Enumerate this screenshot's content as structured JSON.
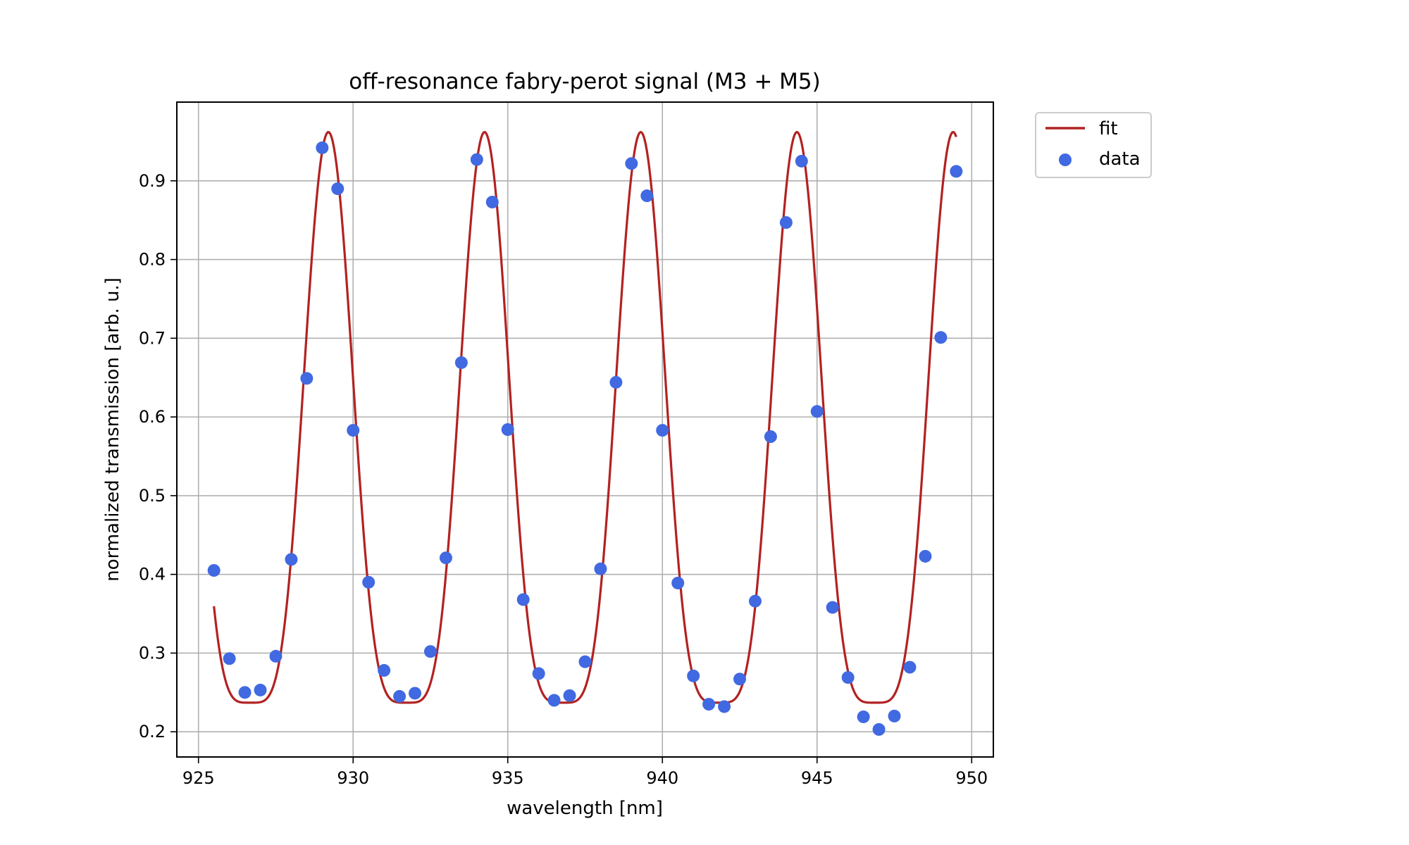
{
  "chart_data": {
    "type": "scatter",
    "title": "off-resonance fabry-perot signal (M3 + M5)",
    "xlabel": "wavelength [nm]",
    "ylabel": "normalized transmission [arb. u.]",
    "xlim": [
      924.3,
      950.7
    ],
    "ylim": [
      0.168,
      1.0
    ],
    "xticks": [
      925,
      930,
      935,
      940,
      945,
      950
    ],
    "yticks": [
      0.2,
      0.3,
      0.4,
      0.5,
      0.6,
      0.7,
      0.8,
      0.9
    ],
    "xtick_labels": [
      "925",
      "930",
      "935",
      "940",
      "945",
      "950"
    ],
    "ytick_labels": [
      "0.2",
      "0.3",
      "0.4",
      "0.5",
      "0.6",
      "0.7",
      "0.8",
      "0.9"
    ],
    "grid": true,
    "legend_position": "outside-top-right",
    "series": [
      {
        "name": "fit",
        "kind": "line",
        "color": "#b22222",
        "model": {
          "min": 0.237,
          "max": 0.962,
          "period": 5.05,
          "peak_x": 929.2,
          "sharpness": 2.2
        },
        "x_range": [
          925.5,
          949.5
        ]
      },
      {
        "name": "data",
        "kind": "scatter",
        "color": "#4169e1",
        "x": [
          925.5,
          926.0,
          926.5,
          927.0,
          927.5,
          928.0,
          928.5,
          929.0,
          929.5,
          930.0,
          930.5,
          931.0,
          931.5,
          932.0,
          932.5,
          933.0,
          933.5,
          934.0,
          934.5,
          935.0,
          935.5,
          936.0,
          936.5,
          937.0,
          937.5,
          938.0,
          938.5,
          939.0,
          939.5,
          940.0,
          940.5,
          941.0,
          941.5,
          942.0,
          942.5,
          943.0,
          943.5,
          944.0,
          944.5,
          945.0,
          945.5,
          946.0,
          946.5,
          947.0,
          947.5,
          948.0,
          948.5,
          949.0,
          949.5
        ],
        "y": [
          0.405,
          0.293,
          0.25,
          0.253,
          0.296,
          0.419,
          0.649,
          0.942,
          0.89,
          0.583,
          0.39,
          0.278,
          0.245,
          0.249,
          0.302,
          0.421,
          0.669,
          0.927,
          0.873,
          0.584,
          0.368,
          0.274,
          0.24,
          0.246,
          0.289,
          0.407,
          0.644,
          0.922,
          0.881,
          0.583,
          0.389,
          0.271,
          0.235,
          0.232,
          0.267,
          0.366,
          0.575,
          0.847,
          0.925,
          0.607,
          0.358,
          0.269,
          0.219,
          0.203,
          0.22,
          0.282,
          0.423,
          0.701,
          0.912
        ]
      }
    ]
  }
}
